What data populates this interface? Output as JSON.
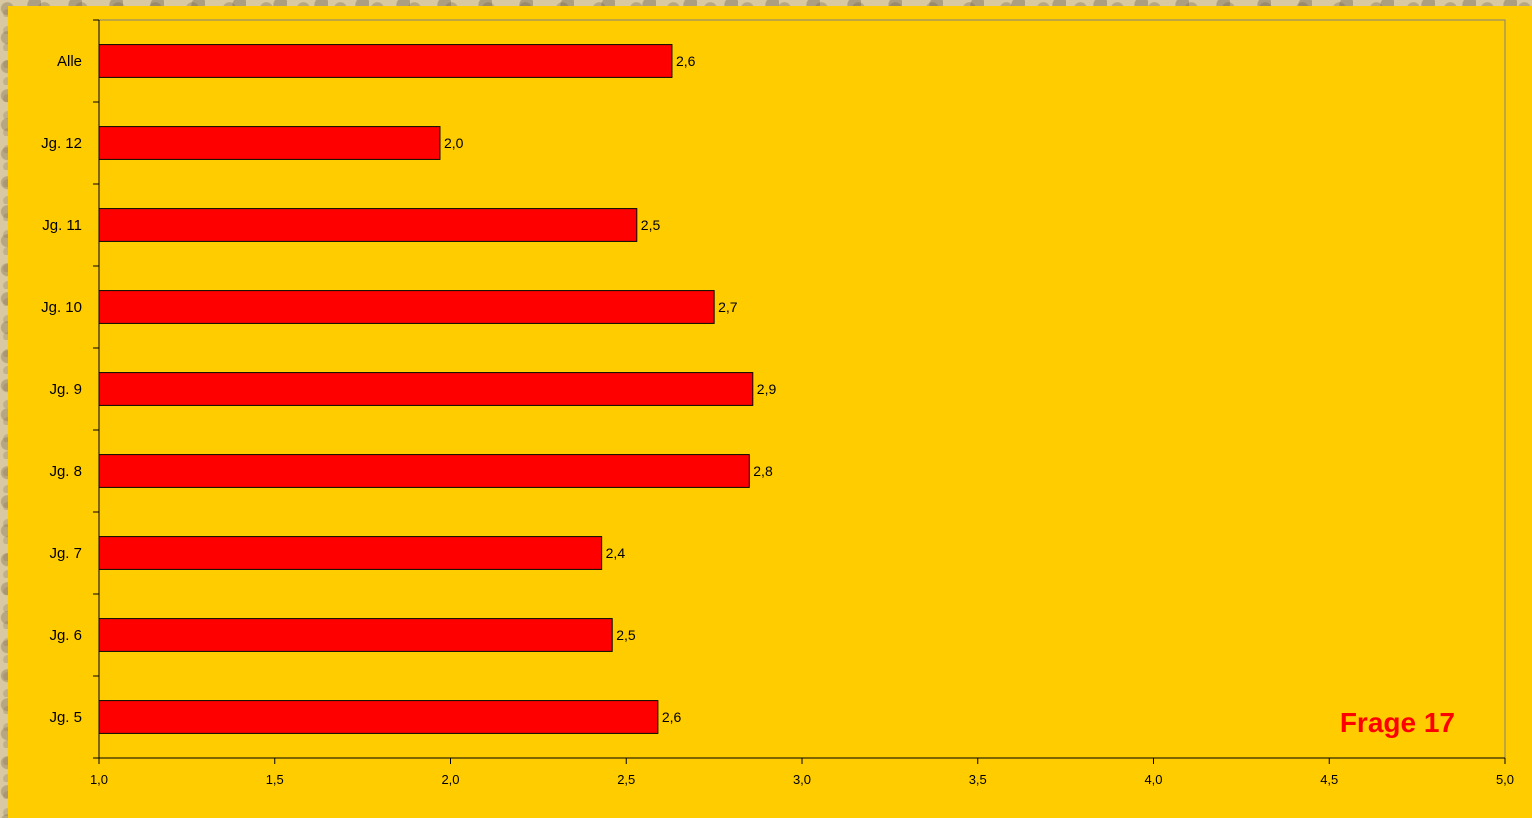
{
  "chart_data": {
    "type": "bar",
    "orientation": "horizontal",
    "categories": [
      "Alle",
      "Jg. 12",
      "Jg. 11",
      "Jg. 10",
      "Jg. 9",
      "Jg. 8",
      "Jg. 7",
      "Jg. 6",
      "Jg. 5"
    ],
    "values": [
      2.63,
      1.97,
      2.53,
      2.75,
      2.86,
      2.85,
      2.43,
      2.46,
      2.59
    ],
    "data_labels": [
      "2,6",
      "2,0",
      "2,5",
      "2,7",
      "2,9",
      "2,8",
      "2,4",
      "2,5",
      "2,6"
    ],
    "xlim": [
      1.0,
      5.0
    ],
    "x_ticks": [
      1.0,
      1.5,
      2.0,
      2.5,
      3.0,
      3.5,
      4.0,
      4.5,
      5.0
    ],
    "x_tick_labels": [
      "1,0",
      "1,5",
      "2,0",
      "2,5",
      "3,0",
      "3,5",
      "4,0",
      "4,5",
      "5,0"
    ],
    "annotation": "Frage 17",
    "title": "",
    "xlabel": "",
    "ylabel": "",
    "grid": false,
    "legend": "none",
    "colors": {
      "plot_background": "#ffcc00",
      "bar_fill": "#ff0000",
      "bar_stroke": "#000000",
      "annotation": "#ff0000",
      "frame": "#808080"
    }
  }
}
